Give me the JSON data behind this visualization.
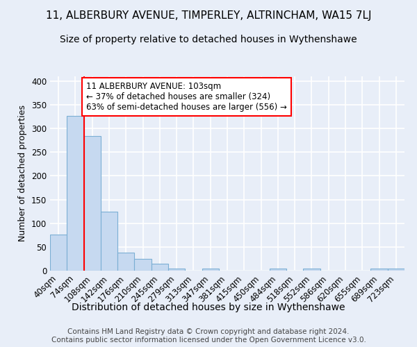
{
  "title": "11, ALBERBURY AVENUE, TIMPERLEY, ALTRINCHAM, WA15 7LJ",
  "subtitle": "Size of property relative to detached houses in Wythenshawe",
  "xlabel": "Distribution of detached houses by size in Wythenshawe",
  "ylabel": "Number of detached properties",
  "footer_line1": "Contains HM Land Registry data © Crown copyright and database right 2024.",
  "footer_line2": "Contains public sector information licensed under the Open Government Licence v3.0.",
  "bins": [
    "40sqm",
    "74sqm",
    "108sqm",
    "142sqm",
    "176sqm",
    "210sqm",
    "245sqm",
    "279sqm",
    "313sqm",
    "347sqm",
    "381sqm",
    "415sqm",
    "450sqm",
    "484sqm",
    "518sqm",
    "552sqm",
    "586sqm",
    "620sqm",
    "655sqm",
    "689sqm",
    "723sqm"
  ],
  "values": [
    76,
    326,
    284,
    124,
    38,
    25,
    14,
    4,
    0,
    4,
    0,
    0,
    0,
    5,
    0,
    4,
    0,
    0,
    0,
    4,
    4
  ],
  "bar_color": "#c6d9f0",
  "bar_edge_color": "#7bafd4",
  "red_line_index": 2,
  "annotation_text": "11 ALBERBURY AVENUE: 103sqm\n← 37% of detached houses are smaller (324)\n63% of semi-detached houses are larger (556) →",
  "annotation_box_facecolor": "white",
  "annotation_box_edgecolor": "red",
  "ylim": [
    0,
    410
  ],
  "yticks": [
    0,
    50,
    100,
    150,
    200,
    250,
    300,
    350,
    400
  ],
  "background_color": "#e8eef8",
  "grid_color": "white",
  "title_fontsize": 11,
  "subtitle_fontsize": 10,
  "xlabel_fontsize": 10,
  "ylabel_fontsize": 9,
  "tick_fontsize": 8.5,
  "footer_fontsize": 7.5,
  "annot_fontsize": 8.5
}
